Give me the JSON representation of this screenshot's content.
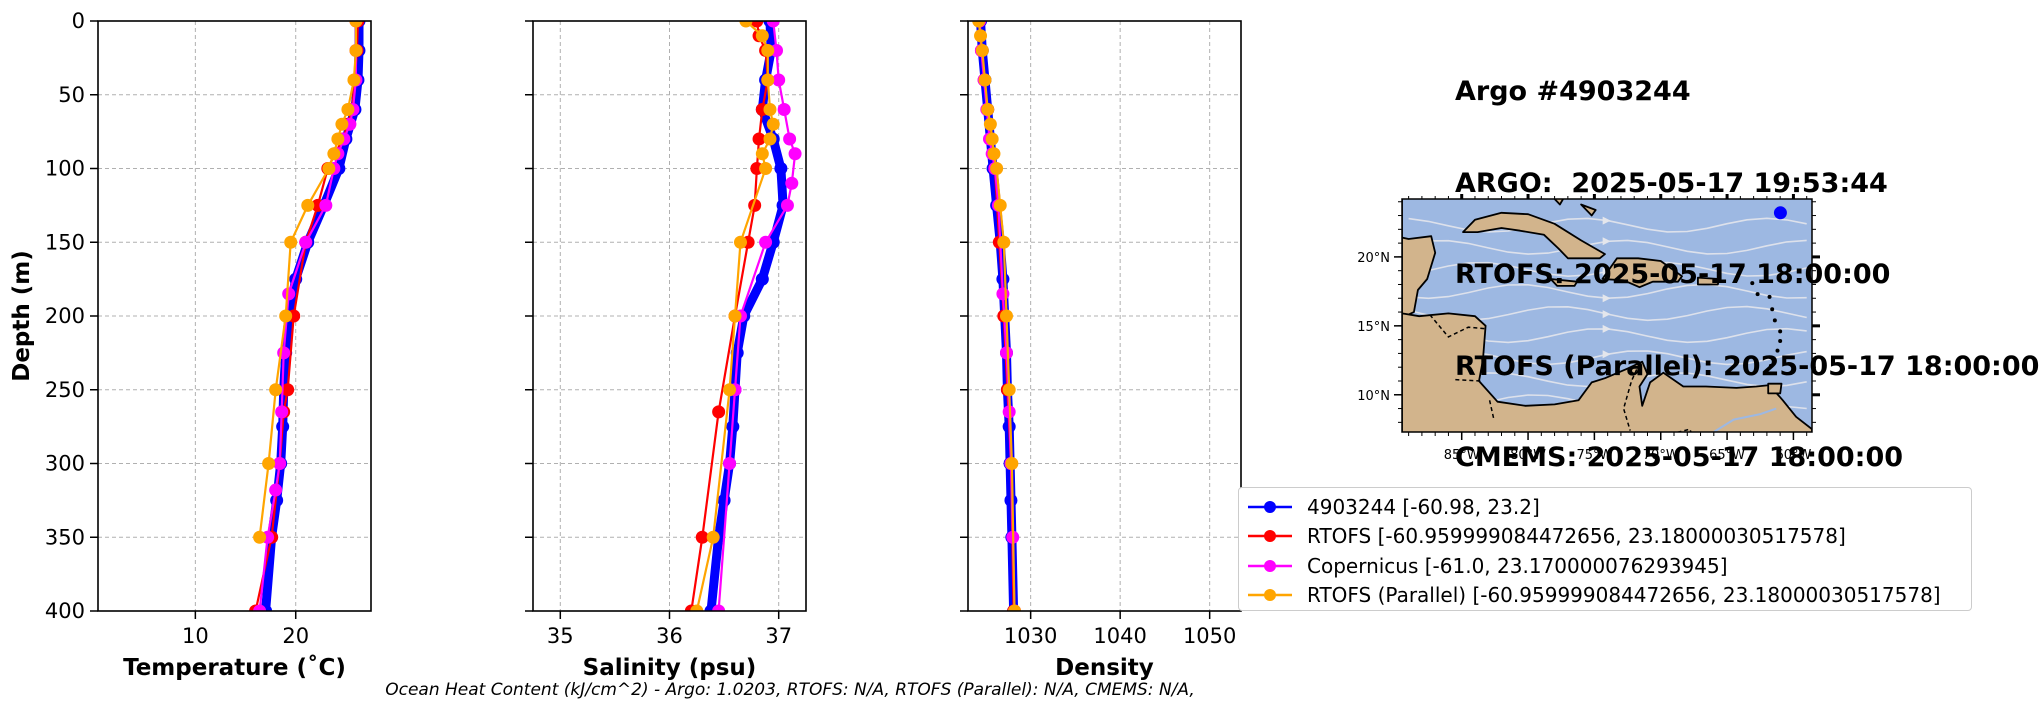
{
  "header": {
    "lines": [
      "Argo #4903244",
      "ARGO:  2025-05-17 19:53:44",
      "RTOFS: 2025-05-17 18:00:00",
      "RTOFS (Parallel): 2025-05-17 18:00:00",
      "CMEMS: 2025-05-17 18:00:00"
    ]
  },
  "footer": {
    "text": "Ocean Heat Content (kJ/cm^2) - Argo: 1.0203,  RTOFS: N/A,  RTOFS (Parallel): N/A,  CMEMS: N/A,"
  },
  "legend": {
    "entries": [
      {
        "label": "4903244 [-60.98, 23.2]",
        "color": "#0000ff"
      },
      {
        "label": "RTOFS [-60.959999084472656, 23.18000030517578]",
        "color": "#ff0000"
      },
      {
        "label": "Copernicus [-61.0, 23.170000076293945]",
        "color": "#ff00ff"
      },
      {
        "label": "RTOFS (Parallel) [-60.959999084472656, 23.18000030517578]",
        "color": "#ffa500"
      }
    ]
  },
  "map": {
    "lat_labels": [
      "20°N",
      "15°N",
      "10°N"
    ],
    "lon_labels": [
      "85°W",
      "80°W",
      "75°W",
      "70°W",
      "65°W",
      "60°W"
    ],
    "float_position": {
      "lon": -60.98,
      "lat": 23.2
    },
    "colors": {
      "ocean": "#9db8e2",
      "land": "#d2b48c",
      "stream": "#e4e6ec"
    }
  },
  "chart_data": [
    {
      "type": "line",
      "xlabel": "Temperature (˚C)",
      "ylabel": "Depth (m)",
      "xlim": [
        0.3,
        27.5
      ],
      "ylim": [
        400,
        0
      ],
      "xticks": [
        10,
        20
      ],
      "yticks": [
        0,
        50,
        100,
        150,
        200,
        250,
        300,
        350,
        400
      ],
      "grid": true,
      "series": [
        {
          "name": "4903244",
          "color": "#0000ff",
          "x": [
            26.3,
            26.3,
            26.2,
            25.9,
            25.0,
            24.3,
            22.8,
            21.2,
            20.0,
            19.3,
            19.0,
            18.8,
            18.7,
            18.5,
            18.1,
            17.6,
            17.0
          ],
          "y": [
            0,
            20,
            40,
            60,
            80,
            100,
            125,
            150,
            175,
            200,
            225,
            250,
            275,
            300,
            325,
            350,
            400
          ]
        },
        {
          "name": "RTOFS",
          "color": "#ff0000",
          "x": [
            26.2,
            26.1,
            25.9,
            25.6,
            25.2,
            24.7,
            23.9,
            23.2,
            22.2,
            21.0,
            19.8,
            19.2,
            18.8,
            18.4,
            17.6,
            16.0
          ],
          "y": [
            0,
            20,
            40,
            60,
            70,
            80,
            90,
            100,
            125,
            150,
            200,
            250,
            265,
            300,
            350,
            400
          ]
        },
        {
          "name": "Copernicus",
          "color": "#ff00ff",
          "x": [
            26.0,
            26.0,
            26.0,
            25.7,
            25.4,
            24.8,
            24.2,
            23.8,
            23.0,
            21.0,
            19.3,
            18.8,
            18.6,
            18.4,
            18.0,
            17.2,
            16.4
          ],
          "y": [
            0,
            20,
            40,
            60,
            70,
            80,
            90,
            100,
            125,
            150,
            185,
            225,
            265,
            300,
            318,
            350,
            400
          ]
        },
        {
          "name": "RTOFS (Parallel)",
          "color": "#ffa500",
          "x": [
            26.0,
            26.0,
            25.8,
            25.2,
            24.6,
            24.2,
            23.8,
            23.3,
            21.2,
            19.5,
            19.0,
            18.0,
            17.3,
            16.4
          ],
          "y": [
            0,
            20,
            40,
            60,
            70,
            80,
            90,
            100,
            125,
            150,
            200,
            250,
            300,
            350
          ]
        }
      ]
    },
    {
      "type": "line",
      "xlabel": "Salinity (psu)",
      "ylabel": "",
      "xlim": [
        34.75,
        37.25
      ],
      "ylim": [
        400,
        0
      ],
      "xticks": [
        35,
        36,
        37
      ],
      "yticks": [
        0,
        50,
        100,
        150,
        200,
        250,
        300,
        350,
        400
      ],
      "grid": true,
      "series": [
        {
          "name": "4903244",
          "color": "#0000ff",
          "x": [
            36.92,
            36.93,
            36.88,
            36.85,
            36.95,
            37.02,
            37.04,
            36.95,
            36.85,
            36.68,
            36.62,
            36.6,
            36.58,
            36.55,
            36.5,
            36.45,
            36.38
          ],
          "y": [
            0,
            20,
            40,
            60,
            80,
            100,
            125,
            150,
            175,
            200,
            225,
            250,
            275,
            300,
            325,
            350,
            400
          ]
        },
        {
          "name": "RTOFS",
          "color": "#ff0000",
          "x": [
            36.8,
            36.82,
            36.88,
            36.9,
            36.85,
            36.82,
            36.8,
            36.78,
            36.72,
            36.6,
            36.45,
            36.3,
            36.2
          ],
          "y": [
            0,
            10,
            20,
            40,
            60,
            80,
            100,
            125,
            150,
            200,
            265,
            350,
            400
          ]
        },
        {
          "name": "Copernicus",
          "color": "#ff00ff",
          "x": [
            36.95,
            36.98,
            37.0,
            37.05,
            37.1,
            37.15,
            37.12,
            37.08,
            36.88,
            36.65,
            36.6,
            36.55,
            36.45
          ],
          "y": [
            0,
            20,
            40,
            60,
            80,
            90,
            110,
            125,
            150,
            200,
            250,
            300,
            400
          ]
        },
        {
          "name": "RTOFS (Parallel)",
          "color": "#ffa500",
          "x": [
            36.7,
            36.85,
            36.9,
            36.9,
            36.92,
            36.95,
            36.92,
            36.85,
            36.88,
            36.65,
            36.6,
            36.55,
            36.4,
            36.25
          ],
          "y": [
            0,
            10,
            20,
            40,
            60,
            70,
            80,
            90,
            100,
            150,
            200,
            250,
            350,
            400
          ]
        }
      ]
    },
    {
      "type": "line",
      "xlabel": "Density",
      "ylabel": "",
      "xlim": [
        1023,
        1053.5
      ],
      "ylim": [
        400,
        0
      ],
      "xticks": [
        1030,
        1040,
        1050
      ],
      "yticks": [
        0,
        50,
        100,
        150,
        200,
        250,
        300,
        350,
        400
      ],
      "grid": true,
      "series": [
        {
          "name": "4903244",
          "color": "#0000ff",
          "x": [
            1024.4,
            1024.6,
            1024.9,
            1025.2,
            1025.5,
            1025.8,
            1026.2,
            1026.6,
            1026.9,
            1027.1,
            1027.3,
            1027.4,
            1027.6,
            1027.7,
            1027.8,
            1027.9,
            1028.1
          ],
          "y": [
            0,
            20,
            40,
            60,
            80,
            100,
            125,
            150,
            175,
            200,
            225,
            250,
            275,
            300,
            325,
            350,
            400
          ]
        },
        {
          "name": "RTOFS",
          "color": "#ff0000",
          "x": [
            1024.3,
            1024.5,
            1024.8,
            1025.2,
            1025.6,
            1026.0,
            1026.5,
            1027.0,
            1027.4,
            1027.8,
            1028.1
          ],
          "y": [
            0,
            20,
            40,
            60,
            80,
            100,
            150,
            200,
            250,
            300,
            400
          ]
        },
        {
          "name": "Copernicus",
          "color": "#ff00ff",
          "x": [
            1024.3,
            1024.5,
            1024.8,
            1025.1,
            1025.4,
            1025.7,
            1026.0,
            1026.4,
            1026.9,
            1027.3,
            1027.6,
            1027.8,
            1028.0,
            1028.2
          ],
          "y": [
            0,
            20,
            40,
            60,
            80,
            90,
            100,
            125,
            185,
            225,
            265,
            300,
            350,
            400
          ]
        },
        {
          "name": "RTOFS (Parallel)",
          "color": "#ffa500",
          "x": [
            1024.2,
            1024.4,
            1024.6,
            1024.9,
            1025.2,
            1025.5,
            1025.7,
            1025.9,
            1026.2,
            1026.6,
            1027.0,
            1027.3,
            1027.6,
            1027.9,
            1028.2
          ],
          "y": [
            0,
            10,
            20,
            40,
            60,
            70,
            80,
            90,
            100,
            125,
            150,
            200,
            250,
            300,
            400
          ]
        }
      ]
    }
  ]
}
